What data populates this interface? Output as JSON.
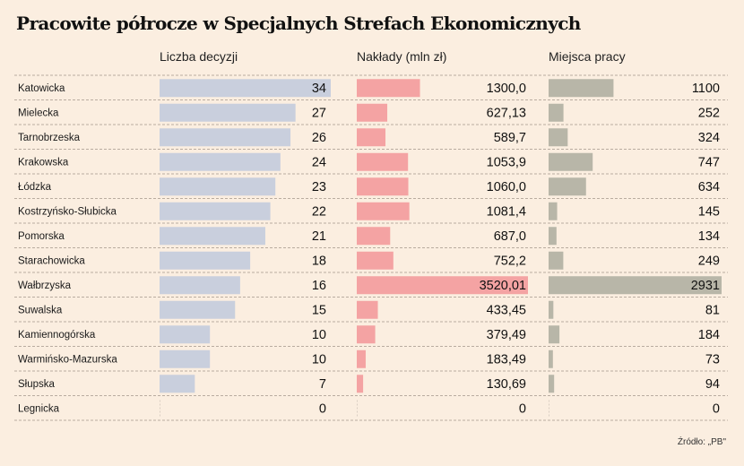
{
  "title": "Pracowite półrocze w Specjalnych Strefach Ekonomicznych",
  "source": "Źródło: „PB\"",
  "colors": {
    "bar_decisions": "#c9cfdd",
    "bar_investment": "#f4a3a3",
    "bar_jobs": "#b8b6a8",
    "divider": "#b9aca0",
    "background": "#fbeee0"
  },
  "chart_data": {
    "type": "bar",
    "title": "Pracowite półrocze w Specjalnych Strefach Ekonomicznych",
    "categories": [
      "Katowicka",
      "Mielecka",
      "Tarnobrzeska",
      "Krakowska",
      "Łódzka",
      "Kostrzyńsko-Słubicka",
      "Pomorska",
      "Starachowicka",
      "Wałbrzyska",
      "Suwalska",
      "Kamiennogórska",
      "Warmińsko-Mazurska",
      "Słupska",
      "Legnicka"
    ],
    "series": [
      {
        "name": "Liczba decyzji",
        "values": [
          34,
          27,
          26,
          24,
          23,
          22,
          21,
          18,
          16,
          15,
          10,
          10,
          7,
          0
        ],
        "labels": [
          "34",
          "27",
          "26",
          "24",
          "23",
          "22",
          "21",
          "18",
          "16",
          "15",
          "10",
          "10",
          "7",
          "0"
        ],
        "max": 34
      },
      {
        "name": "Nakłady (mln zł)",
        "values": [
          1300.0,
          627.13,
          589.7,
          1053.9,
          1060.0,
          1081.4,
          687.0,
          752.2,
          3520.01,
          433.45,
          379.49,
          183.49,
          130.69,
          0
        ],
        "labels": [
          "1300,0",
          "627,13",
          "589,7",
          "1053,9",
          "1060,0",
          "1081,4",
          "687,0",
          "752,2",
          "3520,01",
          "433,45",
          "379,49",
          "183,49",
          "130,69",
          "0"
        ],
        "max": 3520.01
      },
      {
        "name": "Miejsca pracy",
        "values": [
          1100,
          252,
          324,
          747,
          634,
          145,
          134,
          249,
          2931,
          81,
          184,
          73,
          94,
          0
        ],
        "labels": [
          "1100",
          "252",
          "324",
          "747",
          "634",
          "145",
          "134",
          "249",
          "2931",
          "81",
          "184",
          "73",
          "94",
          "0"
        ],
        "max": 2931
      }
    ]
  }
}
